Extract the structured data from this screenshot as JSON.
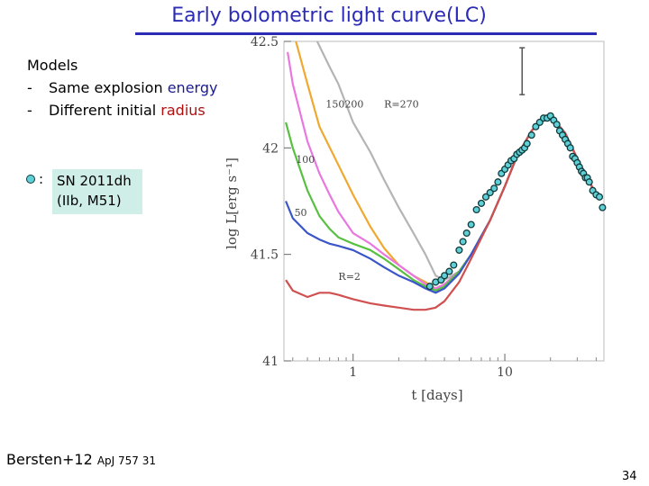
{
  "slide": {
    "title": "Early bolometric light curve(LC)",
    "models_heading": "Models",
    "bullet_dash": "-",
    "bullet_1_prefix": "Same explosion ",
    "bullet_1_highlight": "energy",
    "bullet_2_prefix": "Different initial ",
    "bullet_2_highlight": "radius",
    "legend_colon": ":",
    "legend_line_1": "SN 2011dh",
    "legend_line_2": "(IIb, M51)",
    "citation_main": "Bersten+12 ",
    "citation_small": "ApJ 757 31",
    "page_number": "34"
  },
  "colors": {
    "title": "#2b2bb5",
    "energy_highlight": "#1a1a9a",
    "radius_highlight": "#b01010",
    "observed_marker": "#5fd0d8"
  },
  "chart_data": {
    "type": "line",
    "xlabel": "t [days]",
    "ylabel": "log L[erg s⁻¹]",
    "xscale": "log",
    "xlim": [
      0.35,
      45
    ],
    "ylim": [
      41,
      42.5
    ],
    "x_ticks": [
      {
        "value": 1,
        "label": "1"
      },
      {
        "value": 10,
        "label": "10"
      }
    ],
    "y_ticks": [
      {
        "value": 41,
        "label": "41"
      },
      {
        "value": 41.5,
        "label": "41.5"
      },
      {
        "value": 42,
        "label": "42"
      },
      {
        "value": 42.5,
        "label": "42.5"
      }
    ],
    "grid": false,
    "series": [
      {
        "name": "R=270",
        "color": "#b4b4b4",
        "x": [
          0.58,
          0.7,
          0.8,
          1,
          1.3,
          1.6,
          2,
          2.5,
          3,
          3.5,
          4,
          5,
          6,
          8,
          10,
          12,
          15,
          18,
          20,
          25,
          30,
          40
        ],
        "y": [
          42.5,
          42.38,
          42.3,
          42.12,
          41.98,
          41.85,
          41.72,
          41.6,
          41.5,
          41.4,
          41.38,
          41.42,
          41.5,
          41.66,
          41.82,
          41.96,
          42.08,
          42.14,
          42.15,
          42.07,
          41.95,
          41.78
        ]
      },
      {
        "name": "200",
        "color": "#f0a830",
        "x": [
          0.42,
          0.5,
          0.6,
          0.8,
          1,
          1.3,
          1.6,
          2,
          2.5,
          3,
          3.5,
          4,
          5,
          6,
          8,
          10,
          12,
          15,
          18,
          20,
          25,
          30,
          40
        ],
        "y": [
          42.5,
          42.3,
          42.1,
          41.92,
          41.78,
          41.63,
          41.53,
          41.45,
          41.4,
          41.37,
          41.34,
          41.36,
          41.42,
          41.5,
          41.66,
          41.82,
          41.96,
          42.08,
          42.14,
          42.15,
          42.07,
          41.95,
          41.78
        ]
      },
      {
        "name": "150",
        "color": "#e878e0",
        "x": [
          0.37,
          0.4,
          0.5,
          0.6,
          0.7,
          0.8,
          1,
          1.3,
          1.6,
          2,
          2.5,
          3,
          3.5,
          4,
          5,
          6,
          8,
          10,
          12,
          15,
          18,
          20,
          25,
          30,
          40
        ],
        "y": [
          42.45,
          42.3,
          42.03,
          41.88,
          41.78,
          41.7,
          41.6,
          41.55,
          41.5,
          41.45,
          41.4,
          41.36,
          41.34,
          41.36,
          41.42,
          41.5,
          41.66,
          41.82,
          41.96,
          42.08,
          42.14,
          42.15,
          42.07,
          41.95,
          41.78
        ]
      },
      {
        "name": "100",
        "color": "#58c040",
        "x": [
          0.36,
          0.4,
          0.5,
          0.6,
          0.7,
          0.8,
          1,
          1.3,
          1.6,
          2,
          2.5,
          3,
          3.5,
          4,
          5,
          6,
          8,
          10,
          12,
          15,
          18,
          20,
          25,
          30,
          40
        ],
        "y": [
          42.12,
          42,
          41.8,
          41.68,
          41.62,
          41.58,
          41.55,
          41.52,
          41.48,
          41.43,
          41.38,
          41.35,
          41.33,
          41.35,
          41.42,
          41.5,
          41.66,
          41.82,
          41.96,
          42.08,
          42.14,
          42.15,
          42.07,
          41.95,
          41.78
        ]
      },
      {
        "name": "50",
        "color": "#3a56c8",
        "x": [
          0.36,
          0.4,
          0.5,
          0.6,
          0.7,
          0.8,
          1,
          1.3,
          1.6,
          2,
          2.5,
          3,
          3.5,
          4,
          5,
          6,
          8,
          10,
          12,
          15,
          18,
          20,
          25,
          30,
          40
        ],
        "y": [
          41.75,
          41.67,
          41.6,
          41.57,
          41.55,
          41.54,
          41.52,
          41.48,
          41.44,
          41.4,
          41.37,
          41.34,
          41.32,
          41.34,
          41.41,
          41.5,
          41.66,
          41.82,
          41.96,
          42.08,
          42.14,
          42.15,
          42.07,
          41.95,
          41.78
        ]
      },
      {
        "name": "R=2",
        "color": "#d05050",
        "x": [
          0.36,
          0.4,
          0.5,
          0.6,
          0.7,
          0.8,
          1,
          1.3,
          1.6,
          2,
          2.5,
          3,
          3.5,
          4,
          5,
          6,
          8,
          10,
          12,
          15,
          18,
          20,
          25,
          30,
          40
        ],
        "y": [
          41.38,
          41.33,
          41.3,
          41.32,
          41.32,
          41.31,
          41.29,
          41.27,
          41.26,
          41.25,
          41.24,
          41.24,
          41.25,
          41.28,
          41.37,
          41.48,
          41.66,
          41.82,
          41.96,
          42.08,
          42.14,
          42.15,
          42.07,
          41.95,
          41.78
        ]
      }
    ],
    "curve_labels": [
      {
        "text": "150",
        "x": 0.66,
        "y": 42.19
      },
      {
        "text": "200",
        "x": 0.88,
        "y": 42.19
      },
      {
        "text": "R=270",
        "x": 1.6,
        "y": 42.19
      },
      {
        "text": "100",
        "x": 0.42,
        "y": 41.93
      },
      {
        "text": "50",
        "x": 0.41,
        "y": 41.68
      },
      {
        "text": "R=2",
        "x": 0.8,
        "y": 41.38
      }
    ],
    "error_bar": {
      "x": 13,
      "y_low": 42.25,
      "y_high": 42.47
    },
    "observed": {
      "name": "SN 2011dh",
      "x": [
        3.2,
        3.5,
        3.8,
        4.0,
        4.3,
        4.6,
        5.0,
        5.3,
        5.6,
        6.0,
        6.5,
        7.0,
        7.5,
        8.0,
        8.5,
        9.0,
        9.5,
        10.0,
        10.5,
        11.0,
        11.5,
        12.0,
        12.5,
        13.0,
        13.5,
        14.0,
        15.0,
        16.0,
        17.0,
        18.0,
        19.0,
        20.0,
        21.0,
        22.0,
        23.0,
        24.0,
        25.0,
        26.0,
        27.0,
        28.0,
        29.0,
        30.0,
        31.0,
        32.0,
        33.0,
        34.0,
        35.0,
        36.0,
        38.0,
        40.0,
        42.0,
        44.0
      ],
      "y": [
        41.35,
        41.37,
        41.38,
        41.4,
        41.42,
        41.45,
        41.52,
        41.56,
        41.6,
        41.64,
        41.71,
        41.74,
        41.77,
        41.79,
        41.81,
        41.84,
        41.88,
        41.9,
        41.92,
        41.94,
        41.95,
        41.97,
        41.98,
        41.99,
        42.0,
        42.02,
        42.06,
        42.1,
        42.12,
        42.14,
        42.14,
        42.15,
        42.13,
        42.11,
        42.08,
        42.06,
        42.04,
        42.02,
        42.0,
        41.96,
        41.95,
        41.93,
        41.91,
        41.89,
        41.88,
        41.86,
        41.86,
        41.84,
        41.8,
        41.78,
        41.77,
        41.72
      ]
    }
  }
}
